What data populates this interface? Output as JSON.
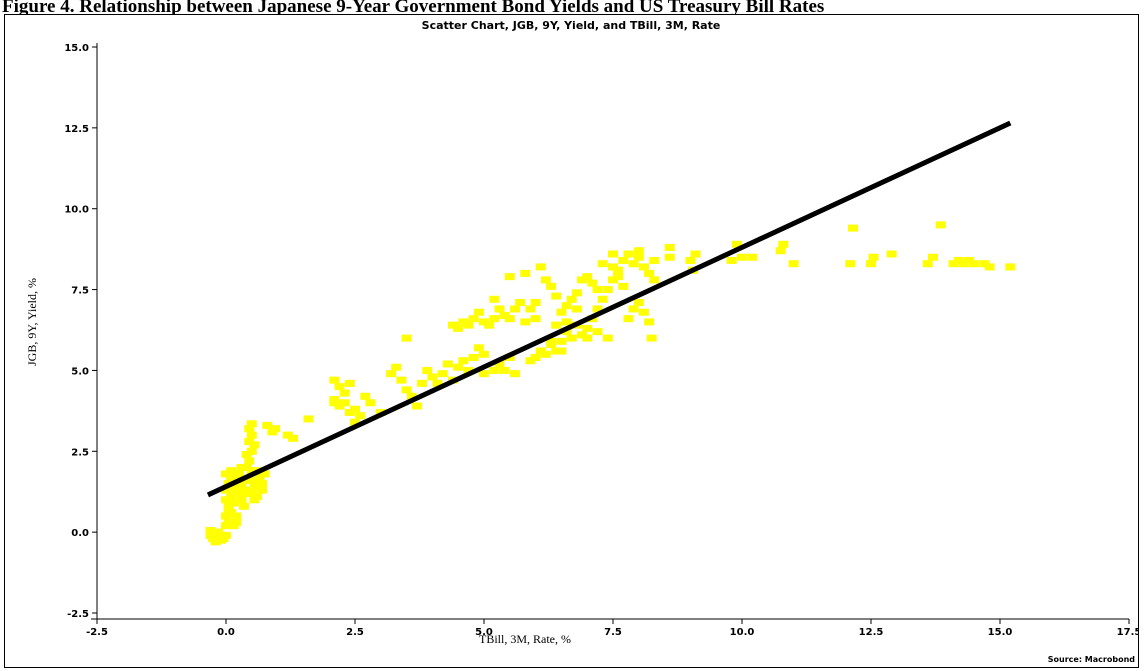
{
  "page": {
    "heading": "Figure 4. Relationship between Japanese 9-Year Government Bond Yields and US Treasury Bill Rates"
  },
  "chart_data": {
    "type": "scatter",
    "title": "Scatter Chart, JGB, 9Y, Yield, and TBill, 3M, Rate",
    "xlabel": "TBill, 3M, Rate, %",
    "ylabel": "JGB, 9Y, Yield, %",
    "xlim": [
      -2.5,
      17.5
    ],
    "ylim": [
      -2.5,
      15.0
    ],
    "x_ticks": [
      "-2.5",
      "0.0",
      "2.5",
      "5.0",
      "7.5",
      "10.0",
      "12.5",
      "15.0",
      "17.5"
    ],
    "y_ticks": [
      "-2.5",
      "0.0",
      "2.5",
      "5.0",
      "7.5",
      "10.0",
      "12.5",
      "15.0"
    ],
    "source": "Source: Macrobond",
    "grid": false,
    "point_color": "#ffff00",
    "line_color": "#000000",
    "points": [
      [
        -0.3,
        -0.1
      ],
      [
        -0.25,
        -0.2
      ],
      [
        -0.2,
        -0.3
      ],
      [
        -0.15,
        0.0
      ],
      [
        -0.1,
        -0.1
      ],
      [
        -0.3,
        0.05
      ],
      [
        -0.2,
        0.0
      ],
      [
        -0.05,
        -0.2
      ],
      [
        0.0,
        -0.1
      ],
      [
        -0.1,
        -0.25
      ],
      [
        0.0,
        0.2
      ],
      [
        0.05,
        0.3
      ],
      [
        0.0,
        0.5
      ],
      [
        0.1,
        0.6
      ],
      [
        0.05,
        0.8
      ],
      [
        0.15,
        0.9
      ],
      [
        0.0,
        1.0
      ],
      [
        0.1,
        1.1
      ],
      [
        0.2,
        1.2
      ],
      [
        0.0,
        1.3
      ],
      [
        0.05,
        1.5
      ],
      [
        0.1,
        1.7
      ],
      [
        0.0,
        1.8
      ],
      [
        0.2,
        1.6
      ],
      [
        0.15,
        1.4
      ],
      [
        0.3,
        1.5
      ],
      [
        0.25,
        1.8
      ],
      [
        0.3,
        1.0
      ],
      [
        0.35,
        0.8
      ],
      [
        0.2,
        0.5
      ],
      [
        0.4,
        1.3
      ],
      [
        0.45,
        1.6
      ],
      [
        0.5,
        1.9
      ],
      [
        0.55,
        1.5
      ],
      [
        0.6,
        1.4
      ],
      [
        0.5,
        1.2
      ],
      [
        0.6,
        1.1
      ],
      [
        0.65,
        1.7
      ],
      [
        0.7,
        1.5
      ],
      [
        0.4,
        2.0
      ],
      [
        0.45,
        2.2
      ],
      [
        0.5,
        2.5
      ],
      [
        0.45,
        2.8
      ],
      [
        0.5,
        3.0
      ],
      [
        0.45,
        3.2
      ],
      [
        0.5,
        3.35
      ],
      [
        0.55,
        2.7
      ],
      [
        0.4,
        2.4
      ],
      [
        0.6,
        1.9
      ],
      [
        0.1,
        1.9
      ],
      [
        0.3,
        2.0
      ],
      [
        0.2,
        0.3
      ],
      [
        0.7,
        1.3
      ],
      [
        0.75,
        1.8
      ],
      [
        0.35,
        1.2
      ],
      [
        0.15,
        0.2
      ],
      [
        0.25,
        1.3
      ],
      [
        0.05,
        0.7
      ],
      [
        0.3,
        1.6
      ],
      [
        0.55,
        1.0
      ],
      [
        0.8,
        3.3
      ],
      [
        0.9,
        3.1
      ],
      [
        1.3,
        2.9
      ],
      [
        1.6,
        3.5
      ],
      [
        1.2,
        3.0
      ],
      [
        0.95,
        3.2
      ],
      [
        2.1,
        4.7
      ],
      [
        2.2,
        4.5
      ],
      [
        2.3,
        4.3
      ],
      [
        2.1,
        4.1
      ],
      [
        2.2,
        3.9
      ],
      [
        2.4,
        4.6
      ],
      [
        2.5,
        3.8
      ],
      [
        2.6,
        3.6
      ],
      [
        2.3,
        4.0
      ],
      [
        2.5,
        3.4
      ],
      [
        2.7,
        4.2
      ],
      [
        2.8,
        4.0
      ],
      [
        3.0,
        3.7
      ],
      [
        2.1,
        4.0
      ],
      [
        2.4,
        3.7
      ],
      [
        3.2,
        4.9
      ],
      [
        3.3,
        5.1
      ],
      [
        3.4,
        4.7
      ],
      [
        3.5,
        4.4
      ],
      [
        3.6,
        4.2
      ],
      [
        3.7,
        3.9
      ],
      [
        3.5,
        6.0
      ],
      [
        3.8,
        4.6
      ],
      [
        3.9,
        5.0
      ],
      [
        4.0,
        4.8
      ],
      [
        4.1,
        4.6
      ],
      [
        4.2,
        4.9
      ],
      [
        4.3,
        5.2
      ],
      [
        4.4,
        4.7
      ],
      [
        4.5,
        5.1
      ],
      [
        4.6,
        5.3
      ],
      [
        4.7,
        5.0
      ],
      [
        4.8,
        5.4
      ],
      [
        4.9,
        5.7
      ],
      [
        5.0,
        5.5
      ],
      [
        4.4,
        6.4
      ],
      [
        4.5,
        6.3
      ],
      [
        4.6,
        6.5
      ],
      [
        4.7,
        6.4
      ],
      [
        4.8,
        6.6
      ],
      [
        4.9,
        6.8
      ],
      [
        5.0,
        6.5
      ],
      [
        5.1,
        6.4
      ],
      [
        5.2,
        6.6
      ],
      [
        5.3,
        6.9
      ],
      [
        5.4,
        6.7
      ],
      [
        5.5,
        6.6
      ],
      [
        5.6,
        6.9
      ],
      [
        5.7,
        7.1
      ],
      [
        5.8,
        6.5
      ],
      [
        5.5,
        7.9
      ],
      [
        5.8,
        8.0
      ],
      [
        5.2,
        7.2
      ],
      [
        5.3,
        5.2
      ],
      [
        5.5,
        5.4
      ],
      [
        5.0,
        4.9
      ],
      [
        5.4,
        5.0
      ],
      [
        5.6,
        4.9
      ],
      [
        5.2,
        5.0
      ],
      [
        5.9,
        5.3
      ],
      [
        6.0,
        5.4
      ],
      [
        6.1,
        5.6
      ],
      [
        6.2,
        5.5
      ],
      [
        6.3,
        5.8
      ],
      [
        6.4,
        5.6
      ],
      [
        6.5,
        5.9
      ],
      [
        6.6,
        6.2
      ],
      [
        6.7,
        6.0
      ],
      [
        6.8,
        6.4
      ],
      [
        6.9,
        6.1
      ],
      [
        7.0,
        6.3
      ],
      [
        7.1,
        6.6
      ],
      [
        7.2,
        6.9
      ],
      [
        7.3,
        7.2
      ],
      [
        7.4,
        7.5
      ],
      [
        7.5,
        7.8
      ],
      [
        7.6,
        8.1
      ],
      [
        7.7,
        8.4
      ],
      [
        7.8,
        8.6
      ],
      [
        7.9,
        8.3
      ],
      [
        8.0,
        8.5
      ],
      [
        8.1,
        8.2
      ],
      [
        8.2,
        8.0
      ],
      [
        8.3,
        7.8
      ],
      [
        7.0,
        7.9
      ],
      [
        7.1,
        7.7
      ],
      [
        7.2,
        7.5
      ],
      [
        6.9,
        7.8
      ],
      [
        6.8,
        7.4
      ],
      [
        6.7,
        7.2
      ],
      [
        6.6,
        7.0
      ],
      [
        6.5,
        6.8
      ],
      [
        6.4,
        7.3
      ],
      [
        6.3,
        7.6
      ],
      [
        6.2,
        7.8
      ],
      [
        6.1,
        8.2
      ],
      [
        6.0,
        7.1
      ],
      [
        7.5,
        8.2
      ],
      [
        7.6,
        7.9
      ],
      [
        7.7,
        7.6
      ],
      [
        7.8,
        6.6
      ],
      [
        7.9,
        6.9
      ],
      [
        8.0,
        7.1
      ],
      [
        8.1,
        6.8
      ],
      [
        8.2,
        6.5
      ],
      [
        8.25,
        6.0
      ],
      [
        7.4,
        6.0
      ],
      [
        7.2,
        6.2
      ],
      [
        7.0,
        6.0
      ],
      [
        6.5,
        5.6
      ],
      [
        6.3,
        5.9
      ],
      [
        6.0,
        6.6
      ],
      [
        5.9,
        6.9
      ],
      [
        6.4,
        6.4
      ],
      [
        6.6,
        6.5
      ],
      [
        6.8,
        6.9
      ],
      [
        7.3,
        8.3
      ],
      [
        7.5,
        8.6
      ],
      [
        8.0,
        8.7
      ],
      [
        8.3,
        8.4
      ],
      [
        8.6,
        8.5
      ],
      [
        8.6,
        8.8
      ],
      [
        9.0,
        8.4
      ],
      [
        9.1,
        8.6
      ],
      [
        9.05,
        8.1
      ],
      [
        9.9,
        8.9
      ],
      [
        10.0,
        8.5
      ],
      [
        10.2,
        8.5
      ],
      [
        9.8,
        8.4
      ],
      [
        10.75,
        8.7
      ],
      [
        10.8,
        8.9
      ],
      [
        11.0,
        8.3
      ],
      [
        12.1,
        8.3
      ],
      [
        12.15,
        9.4
      ],
      [
        12.5,
        8.3
      ],
      [
        12.55,
        8.5
      ],
      [
        12.9,
        8.6
      ],
      [
        13.6,
        8.3
      ],
      [
        13.7,
        8.5
      ],
      [
        13.85,
        9.5
      ],
      [
        14.1,
        8.3
      ],
      [
        14.2,
        8.4
      ],
      [
        14.3,
        8.3
      ],
      [
        14.4,
        8.4
      ],
      [
        14.5,
        8.3
      ],
      [
        14.7,
        8.3
      ],
      [
        14.8,
        8.2
      ],
      [
        15.2,
        8.2
      ]
    ],
    "trendline": {
      "x": [
        -0.35,
        15.2
      ],
      "y": [
        1.15,
        12.65
      ]
    }
  }
}
